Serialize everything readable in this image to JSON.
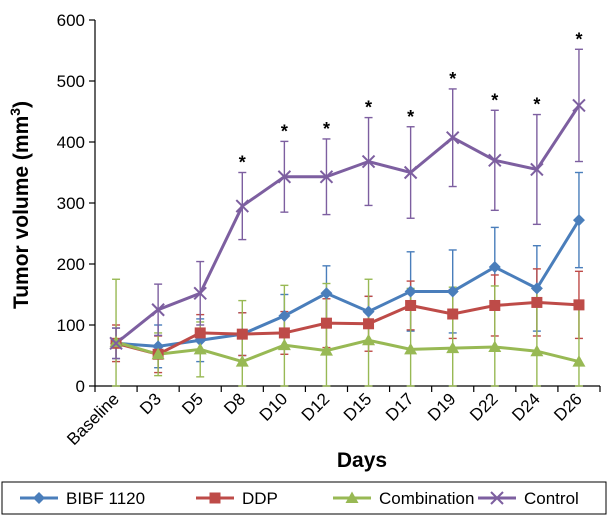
{
  "chart_data": {
    "type": "line",
    "xlabel": "Days",
    "ylabel": "Tumor volume (mm",
    "ylabel_sup": "3",
    "ylabel_close": ")",
    "ylim": [
      0,
      600
    ],
    "yticks": [
      0,
      100,
      200,
      300,
      400,
      500,
      600
    ],
    "categories": [
      "Baseline",
      "D3",
      "D5",
      "D8",
      "D10",
      "D12",
      "D15",
      "D17",
      "D19",
      "D22",
      "D24",
      "D26"
    ],
    "significance_marker": "*",
    "significant_indices": [
      3,
      4,
      5,
      6,
      7,
      8,
      9,
      10,
      11
    ],
    "legend_position": "bottom",
    "series": [
      {
        "name": "BIBF 1120",
        "color": "#4a7ebb",
        "marker": "diamond",
        "values": [
          70,
          65,
          75,
          85,
          115,
          152,
          122,
          155,
          155,
          195,
          160,
          272
        ],
        "errors": [
          25,
          35,
          35,
          35,
          35,
          45,
          25,
          65,
          68,
          65,
          70,
          78
        ]
      },
      {
        "name": "DDP",
        "color": "#be4b48",
        "marker": "square",
        "values": [
          70,
          52,
          87,
          85,
          87,
          103,
          102,
          132,
          118,
          132,
          137,
          133
        ],
        "errors": [
          30,
          30,
          30,
          35,
          35,
          40,
          45,
          40,
          40,
          50,
          55,
          55
        ]
      },
      {
        "name": "Combination",
        "color": "#98b954",
        "marker": "triangle",
        "values": [
          72,
          52,
          60,
          40,
          67,
          58,
          75,
          60,
          62,
          64,
          57,
          40
        ],
        "errors": [
          103,
          35,
          45,
          100,
          98,
          110,
          100,
          100,
          100,
          100,
          100,
          95
        ]
      },
      {
        "name": "Control",
        "color": "#7d5fa0",
        "marker": "x",
        "values": [
          70,
          125,
          152,
          295,
          343,
          343,
          368,
          350,
          407,
          370,
          355,
          460
        ],
        "errors": [
          25,
          42,
          52,
          55,
          58,
          62,
          72,
          75,
          80,
          82,
          90,
          92
        ]
      }
    ]
  }
}
